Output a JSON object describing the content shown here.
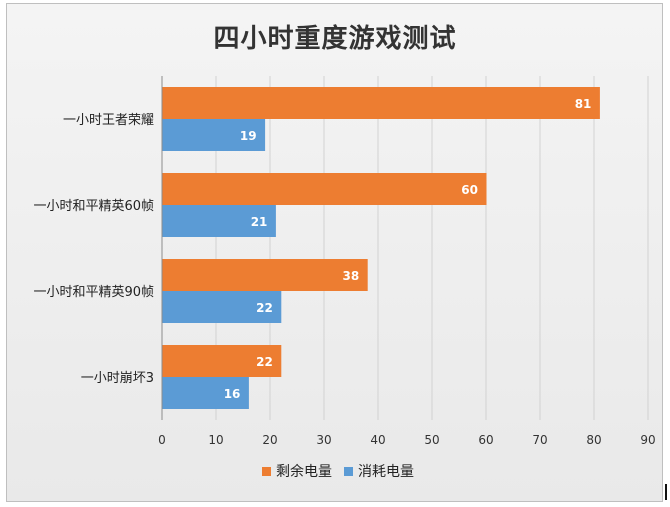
{
  "chart_data": {
    "type": "bar",
    "orientation": "horizontal",
    "title": "四小时重度游戏测试",
    "categories": [
      "一小时王者荣耀",
      "一小时和平精英60帧",
      "一小时和平精英90帧",
      "一小时崩坏3"
    ],
    "series": [
      {
        "name": "剩余电量",
        "values": [
          81,
          60,
          38,
          22
        ],
        "color": "#ED7D31"
      },
      {
        "name": "消耗电量",
        "values": [
          19,
          21,
          22,
          16
        ],
        "color": "#5B9BD5"
      }
    ],
    "xlim": [
      0,
      90
    ],
    "xticks": [
      "0",
      "10",
      "20",
      "30",
      "40",
      "50",
      "60",
      "70",
      "80",
      "90"
    ],
    "grid": true,
    "legend": "bottom",
    "xlabel": "",
    "ylabel": ""
  }
}
